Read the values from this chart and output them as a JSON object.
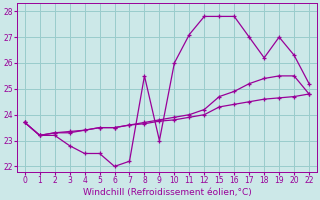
{
  "xlabel": "Windchill (Refroidissement éolien,°C)",
  "background_color": "#cce8e8",
  "grid_color": "#99cccc",
  "line_color": "#990099",
  "line1_x": [
    0,
    1,
    2,
    3,
    4,
    5,
    6,
    7,
    8,
    9,
    10,
    11,
    12,
    15,
    16,
    17,
    18,
    19,
    20,
    22
  ],
  "line1_y": [
    23.7,
    23.2,
    23.2,
    22.8,
    22.5,
    22.5,
    22.0,
    22.2,
    25.5,
    23.0,
    26.0,
    27.1,
    27.8,
    27.8,
    27.8,
    27.0,
    26.2,
    27.0,
    26.3,
    25.2
  ],
  "line2_x": [
    0,
    1,
    2,
    3,
    4,
    5,
    6,
    7,
    8,
    9,
    10,
    11,
    12,
    15,
    16,
    17,
    18,
    19,
    20,
    22
  ],
  "line2_y": [
    23.7,
    23.2,
    23.3,
    23.3,
    23.4,
    23.5,
    23.5,
    23.6,
    23.7,
    23.8,
    23.9,
    24.0,
    24.2,
    24.7,
    24.9,
    25.2,
    25.4,
    25.5,
    25.5,
    24.8
  ],
  "line3_x": [
    0,
    1,
    2,
    3,
    4,
    5,
    6,
    7,
    8,
    9,
    10,
    11,
    12,
    15,
    16,
    17,
    18,
    19,
    20,
    22
  ],
  "line3_y": [
    23.7,
    23.2,
    23.3,
    23.35,
    23.4,
    23.5,
    23.5,
    23.6,
    23.65,
    23.75,
    23.8,
    23.9,
    24.0,
    24.3,
    24.4,
    24.5,
    24.6,
    24.65,
    24.7,
    24.8
  ],
  "xtick_positions": [
    0,
    1,
    2,
    3,
    4,
    5,
    6,
    7,
    8,
    9,
    10,
    11,
    12,
    15,
    16,
    17,
    18,
    19,
    20,
    22
  ],
  "xtick_labels": [
    "0",
    "1",
    "2",
    "3",
    "4",
    "5",
    "6",
    "7",
    "8",
    "9",
    "10",
    "11",
    "12",
    "15",
    "16",
    "17",
    "18",
    "19",
    "20",
    "22"
  ],
  "yticks": [
    22,
    23,
    24,
    25,
    26,
    27,
    28
  ],
  "xlim": [
    -0.3,
    22.5
  ],
  "ylim": [
    21.8,
    28.3
  ],
  "xlabel_fontsize": 6.5,
  "tick_fontsize": 5.5
}
